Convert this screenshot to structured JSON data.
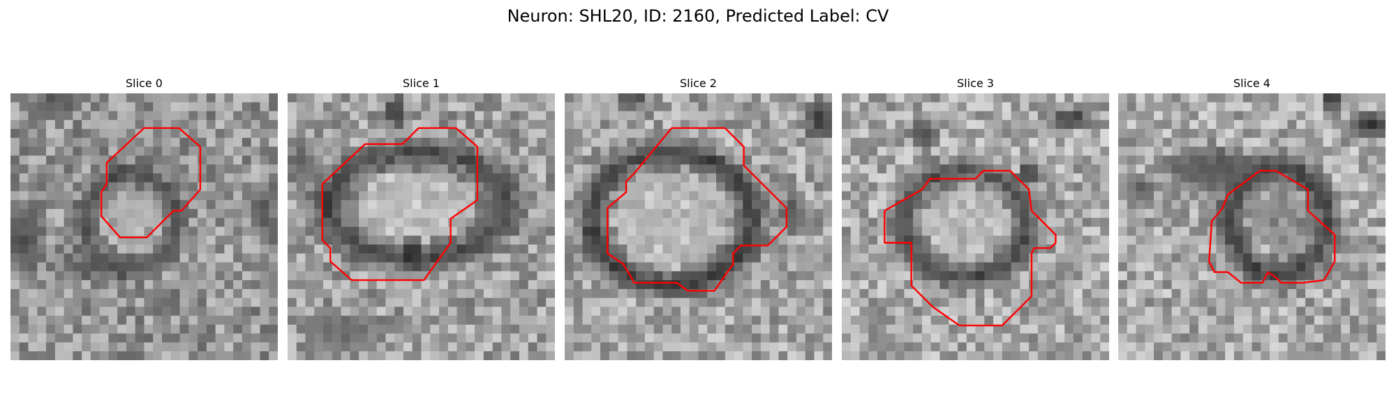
{
  "figure": {
    "title": "Neuron: SHL20, ID: 2160, Predicted Label: CV",
    "contour_color": "#ff0000"
  },
  "slices": [
    {
      "title": "Slice 0"
    },
    {
      "title": "Slice 1"
    },
    {
      "title": "Slice 2"
    },
    {
      "title": "Slice 3"
    },
    {
      "title": "Slice 4"
    }
  ]
}
